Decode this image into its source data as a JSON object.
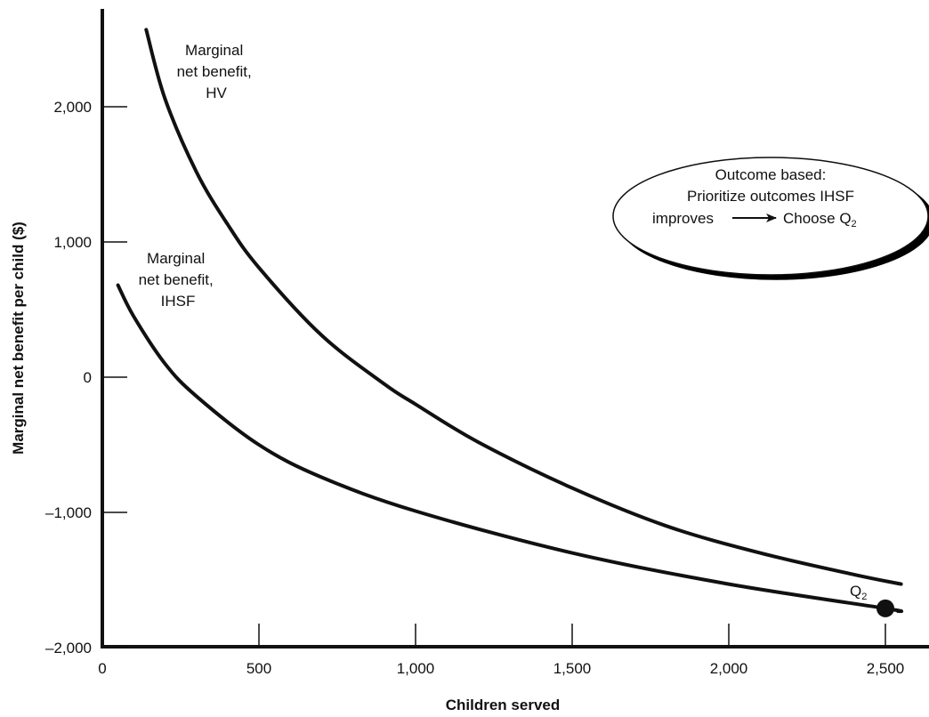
{
  "chart_data": {
    "type": "line",
    "title": "",
    "xlabel": "Children served",
    "ylabel": "Marginal net benefit per child ($)",
    "xlim": [
      0,
      2600
    ],
    "ylim": [
      -2000,
      2600
    ],
    "x_ticks": [
      0,
      500,
      1000,
      1500,
      2000,
      2500
    ],
    "x_tick_labels": [
      "0",
      "500",
      "1,000",
      "1,500",
      "2,000",
      "2,500"
    ],
    "y_ticks": [
      -2000,
      -1000,
      0,
      1000,
      2000
    ],
    "y_tick_labels": [
      "–2,000",
      "–1,000",
      "0",
      "1,000",
      "2,000"
    ],
    "grid": false,
    "series": [
      {
        "name": "Marginal net benefit, HV",
        "x": [
          140,
          200,
          300,
          400,
          500,
          700,
          900,
          1000,
          1200,
          1500,
          1800,
          2100,
          2400,
          2550
        ],
        "y": [
          2570,
          2060,
          1520,
          1130,
          810,
          310,
          -50,
          -200,
          -480,
          -820,
          -1100,
          -1300,
          -1460,
          -1530
        ]
      },
      {
        "name": "Marginal net benefit, IHSF",
        "x": [
          50,
          100,
          200,
          300,
          500,
          700,
          1000,
          1500,
          2000,
          2500,
          2540
        ],
        "y": [
          680,
          450,
          100,
          -140,
          -500,
          -740,
          -990,
          -1300,
          -1530,
          -1710,
          -1730
        ]
      }
    ],
    "annotations": {
      "hv_label": [
        "Marginal",
        "net benefit,",
        "HV"
      ],
      "ihsf_label": [
        "Marginal",
        "net benefit,",
        "IHSF"
      ],
      "callout_line1": "Outcome based:",
      "callout_line2": "Prioritize outcomes IHSF",
      "callout_line3_left": "improves",
      "callout_line3_right": "Choose Q",
      "callout_sub": "2",
      "point_label": "Q",
      "point_sub": "2"
    },
    "highlight_point": {
      "x": 2500,
      "y": -1710
    }
  }
}
